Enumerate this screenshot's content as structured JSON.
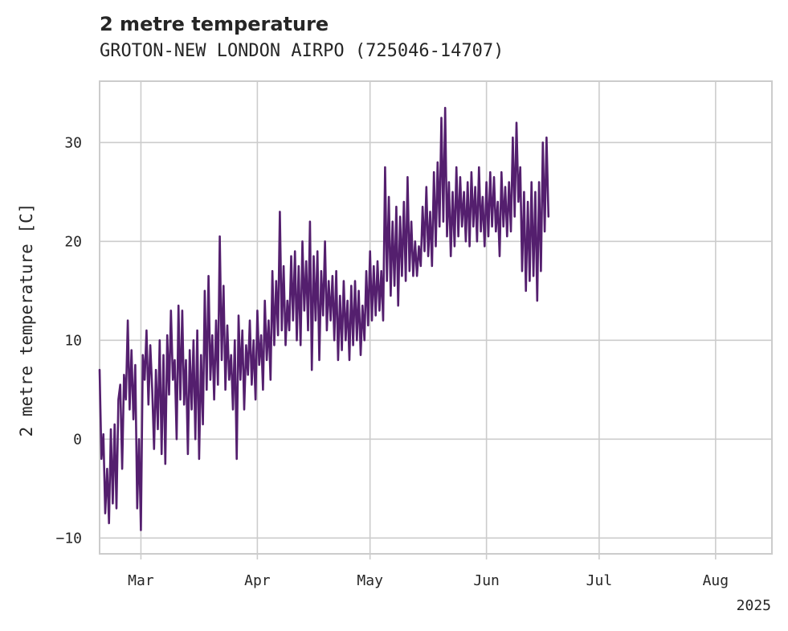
{
  "chart_data": {
    "type": "line",
    "title": "2 metre temperature",
    "subtitle": "GROTON-NEW LONDON AIRPO (725046-14707)",
    "xlabel": "",
    "ylabel": "2 metre temperature [C]",
    "ylim": [
      -11.6,
      36.2
    ],
    "xlim": [
      "2025-02-18",
      "2025-08-16"
    ],
    "grid": true,
    "x_ticks": [
      {
        "date": "2025-03-01",
        "label": "Mar"
      },
      {
        "date": "2025-04-01",
        "label": "Apr"
      },
      {
        "date": "2025-05-01",
        "label": "May"
      },
      {
        "date": "2025-06-01",
        "label": "Jun"
      },
      {
        "date": "2025-07-01",
        "label": "Jul"
      },
      {
        "date": "2025-08-01",
        "label": "Aug"
      }
    ],
    "x_offset_label": "2025",
    "y_ticks": [
      -10,
      0,
      10,
      20,
      30
    ],
    "line_color": "#541f6e",
    "series": [
      {
        "x_start": "2025-02-18T00:00",
        "x_step_hours": 12,
        "values": [
          7.0,
          -2.0,
          0.5,
          -7.5,
          -3.0,
          -8.5,
          1.0,
          -6.5,
          1.5,
          -7.0,
          4.0,
          5.5,
          -3.0,
          6.5,
          4.0,
          12.0,
          3.0,
          9.0,
          2.0,
          7.5,
          -7.0,
          0.0,
          -9.2,
          8.5,
          6.0,
          11.0,
          3.5,
          9.5,
          5.0,
          -1.0,
          7.0,
          1.0,
          10.0,
          -1.5,
          8.5,
          -2.5,
          10.5,
          4.5,
          13.0,
          6.0,
          8.0,
          0.0,
          13.5,
          4.0,
          13.0,
          3.5,
          8.0,
          -1.5,
          9.0,
          3.0,
          10.0,
          0.0,
          11.0,
          -2.0,
          8.5,
          1.5,
          15.0,
          5.0,
          16.5,
          6.0,
          10.5,
          4.0,
          12.0,
          5.5,
          20.5,
          8.0,
          15.5,
          5.0,
          11.5,
          6.0,
          8.5,
          3.0,
          10.0,
          -2.0,
          12.5,
          6.0,
          11.0,
          3.0,
          9.5,
          6.5,
          12.0,
          5.5,
          10.0,
          4.0,
          13.0,
          7.5,
          10.5,
          5.0,
          14.0,
          8.0,
          12.0,
          6.0,
          17.0,
          9.5,
          16.0,
          10.5,
          23.0,
          11.0,
          17.5,
          9.5,
          14.0,
          11.0,
          18.5,
          12.0,
          19.0,
          10.0,
          17.5,
          9.5,
          20.0,
          13.0,
          18.0,
          11.0,
          22.0,
          7.0,
          18.5,
          12.0,
          19.0,
          8.0,
          17.0,
          12.5,
          20.0,
          11.0,
          16.0,
          12.0,
          16.5,
          10.0,
          17.0,
          8.0,
          14.5,
          9.0,
          16.0,
          10.0,
          14.0,
          8.0,
          15.5,
          9.5,
          16.0,
          10.0,
          15.0,
          8.5,
          13.5,
          10.0,
          17.0,
          11.5,
          19.0,
          12.0,
          17.5,
          12.5,
          18.0,
          13.0,
          17.0,
          12.0,
          27.5,
          16.0,
          24.5,
          14.5,
          22.0,
          15.5,
          23.5,
          13.5,
          22.5,
          16.5,
          24.0,
          16.0,
          26.5,
          17.0,
          22.0,
          16.5,
          20.0,
          16.5,
          19.5,
          17.5,
          23.5,
          19.0,
          25.5,
          18.5,
          23.0,
          17.5,
          27.0,
          19.5,
          28.0,
          21.5,
          32.5,
          22.0,
          33.5,
          20.5,
          26.0,
          18.5,
          25.0,
          19.5,
          27.5,
          20.5,
          26.5,
          21.5,
          25.0,
          20.0,
          26.0,
          19.5,
          27.0,
          21.5,
          25.5,
          20.0,
          27.5,
          21.0,
          24.5,
          19.5,
          26.0,
          20.5,
          27.0,
          21.5,
          26.5,
          21.0,
          24.0,
          18.5,
          27.0,
          21.5,
          25.5,
          20.5,
          26.0,
          21.0,
          30.5,
          22.5,
          32.0,
          24.0,
          27.5,
          17.0,
          25.0,
          15.0,
          24.0,
          16.0,
          26.0,
          16.5,
          25.0,
          14.0,
          26.0,
          17.0,
          30.0,
          21.0,
          30.5,
          22.5
        ]
      }
    ]
  }
}
